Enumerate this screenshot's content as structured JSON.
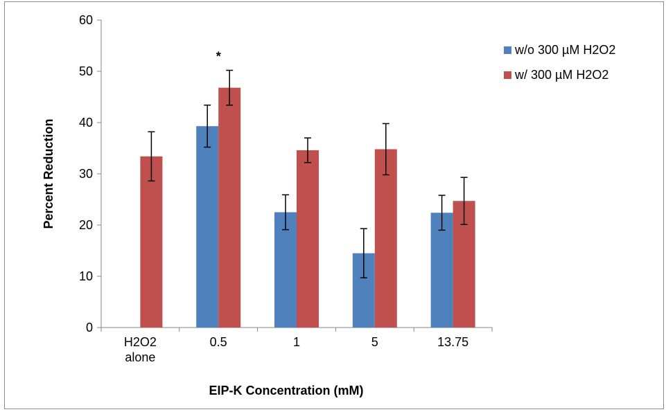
{
  "chart_data": {
    "type": "bar",
    "categories": [
      [
        "H2O2",
        "alone"
      ],
      [
        "0.5"
      ],
      [
        "1"
      ],
      [
        "5"
      ],
      [
        "13.75"
      ]
    ],
    "series": [
      {
        "name": "w/o 300 µM H2O2",
        "color": "#4f81bd",
        "values": [
          null,
          39.3,
          22.5,
          14.5,
          22.4
        ],
        "errors": [
          null,
          4.1,
          3.4,
          4.8,
          3.4
        ]
      },
      {
        "name": "w/ 300 µM H2O2",
        "color": "#c0504d",
        "values": [
          33.4,
          46.8,
          34.6,
          34.8,
          24.7
        ],
        "errors": [
          4.8,
          3.4,
          2.4,
          5.0,
          4.6
        ]
      }
    ],
    "annotations": [
      {
        "text": "*",
        "category_index": 1,
        "series_index": 1
      }
    ],
    "xlabel": "EIP-K Concentration (mM)",
    "ylabel": "Percent Reduction",
    "ylim": [
      0,
      60
    ],
    "yticks": [
      "0",
      "10",
      "20",
      "30",
      "40",
      "50",
      "60"
    ],
    "grid": false,
    "legend_position": "right"
  }
}
